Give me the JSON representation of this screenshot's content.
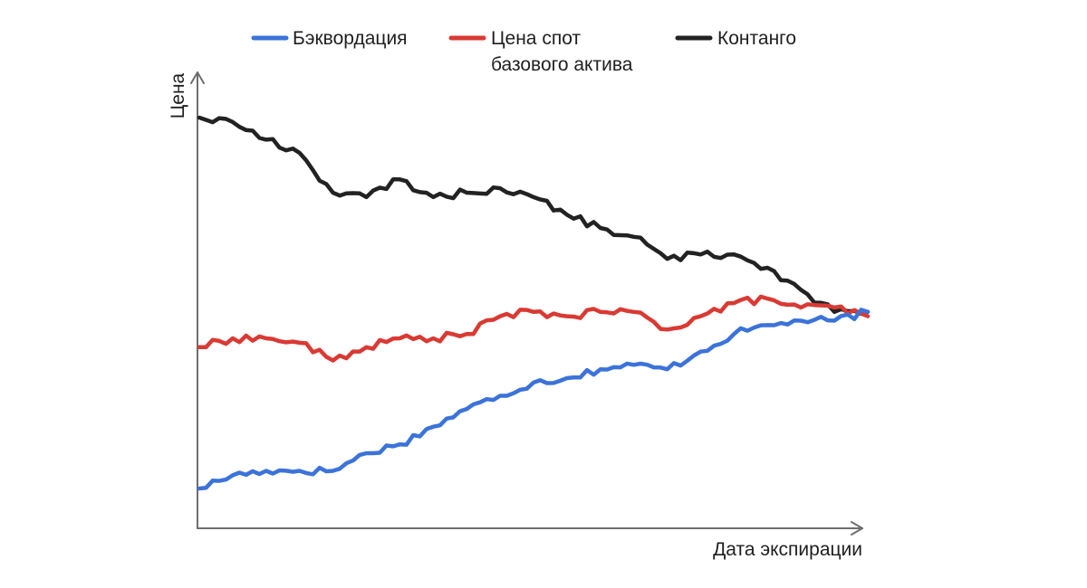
{
  "chart_data": {
    "type": "line",
    "title": "",
    "xlabel": "Дата экспирации",
    "ylabel": "Цена",
    "axis_ticks": false,
    "grid": false,
    "legend_position": "top",
    "x": [
      0,
      0.05,
      0.1,
      0.15,
      0.2,
      0.25,
      0.3,
      0.35,
      0.4,
      0.45,
      0.5,
      0.55,
      0.6,
      0.65,
      0.7,
      0.75,
      0.8,
      0.85,
      0.9,
      0.95,
      1.0
    ],
    "xlim": [
      0,
      1
    ],
    "ylim": [
      0,
      1
    ],
    "series": [
      {
        "name": "Бэквордация",
        "color": "#3b73d9",
        "values": [
          0.16,
          0.19,
          0.2,
          0.2,
          0.2,
          0.24,
          0.26,
          0.3,
          0.34,
          0.37,
          0.4,
          0.41,
          0.43,
          0.44,
          0.43,
          0.47,
          0.51,
          0.53,
          0.54,
          0.54,
          0.56
        ]
      },
      {
        "name": "Цена спот\nбазового актива",
        "color": "#d93a33",
        "values": [
          0.48,
          0.5,
          0.5,
          0.49,
          0.45,
          0.48,
          0.5,
          0.5,
          0.51,
          0.55,
          0.56,
          0.55,
          0.56,
          0.56,
          0.52,
          0.55,
          0.58,
          0.59,
          0.57,
          0.57,
          0.55
        ]
      },
      {
        "name": "Контанго",
        "color": "#222222",
        "values": [
          1.0,
          0.99,
          0.95,
          0.92,
          0.83,
          0.82,
          0.86,
          0.82,
          0.83,
          0.84,
          0.82,
          0.78,
          0.75,
          0.73,
          0.68,
          0.69,
          0.69,
          0.66,
          0.61,
          0.56,
          0.56
        ]
      }
    ]
  }
}
